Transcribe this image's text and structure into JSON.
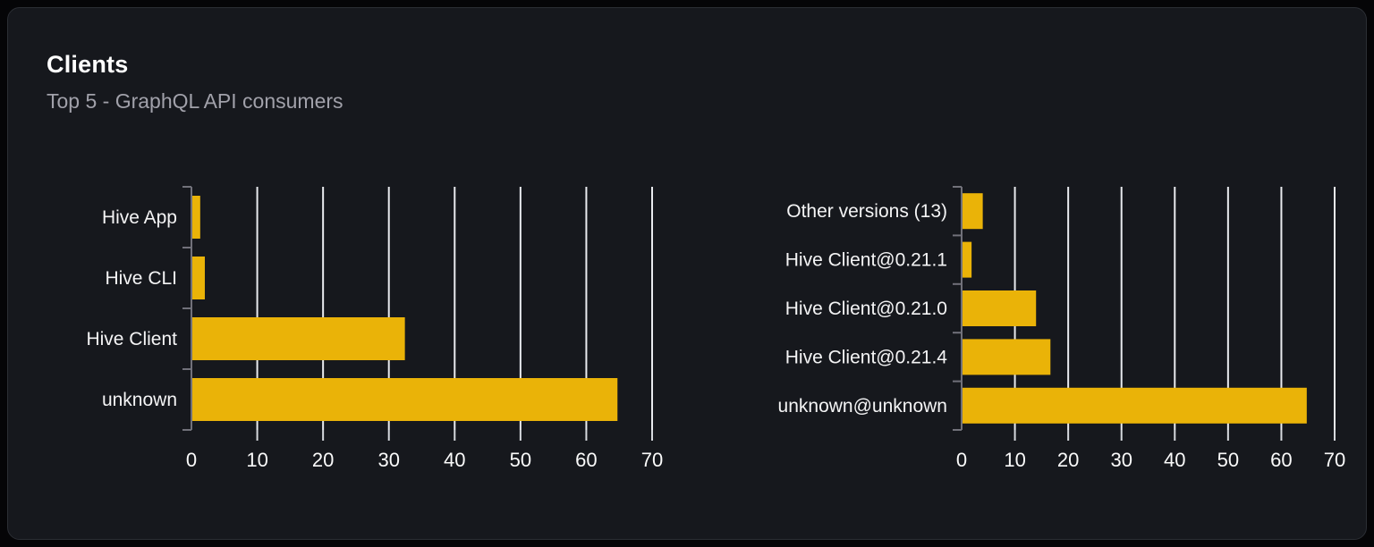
{
  "card": {
    "title": "Clients",
    "subtitle": "Top 5 - GraphQL API consumers"
  },
  "colors": {
    "page_bg": "#050507",
    "card_bg": "#16181d",
    "card_border": "#2b2e34",
    "title": "#ffffff",
    "subtitle": "#a1a1aa",
    "bar": "#eab308",
    "grid_line": "#e9ebef",
    "axis_line": "#71717a",
    "bottom_tick": "#d6d9de",
    "tick_label": "#fafafa",
    "category_label": "#f4f4f5"
  },
  "chart_data": [
    {
      "type": "bar",
      "orientation": "horizontal",
      "categories": [
        "Hive App",
        "Hive CLI",
        "Hive Client",
        "unknown"
      ],
      "values": [
        1.2,
        1.9,
        32.3,
        64.6
      ],
      "xlim": [
        0,
        70
      ],
      "xticks": [
        0,
        10,
        20,
        30,
        40,
        50,
        60,
        70
      ],
      "grid": true,
      "legend": false,
      "bar_color": "#eab308"
    },
    {
      "type": "bar",
      "orientation": "horizontal",
      "categories": [
        "Other versions (13)",
        "Hive Client@0.21.1",
        "Hive Client@0.21.0",
        "Hive Client@0.21.4",
        "unknown@unknown"
      ],
      "values": [
        3.8,
        1.7,
        13.8,
        16.5,
        64.6
      ],
      "xlim": [
        0,
        70
      ],
      "xticks": [
        0,
        10,
        20,
        30,
        40,
        50,
        60,
        70
      ],
      "grid": true,
      "legend": false,
      "bar_color": "#eab308"
    }
  ]
}
